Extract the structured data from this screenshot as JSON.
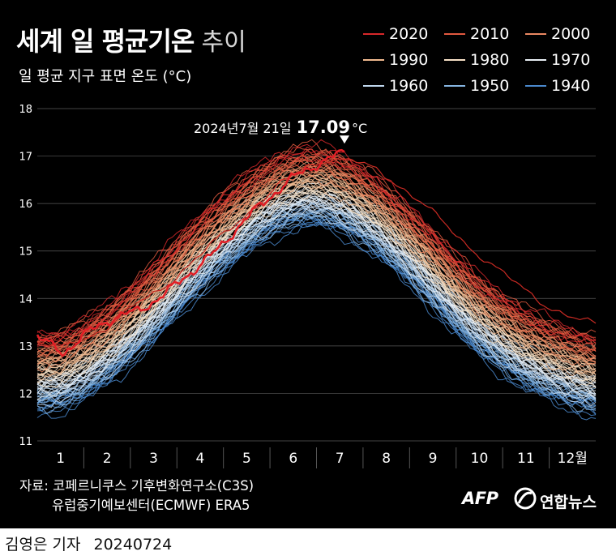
{
  "title": {
    "bold": "세계 일 평균기온",
    "light": "추이"
  },
  "subtitle": "일 평균 지구 표면 온도 (°C)",
  "legend": [
    {
      "label": "2020",
      "color": "#d7282a"
    },
    {
      "label": "2010",
      "color": "#e2593f"
    },
    {
      "label": "2000",
      "color": "#ea8862"
    },
    {
      "label": "1990",
      "color": "#f0b98f"
    },
    {
      "label": "1980",
      "color": "#f7e0c6"
    },
    {
      "label": "1970",
      "color": "#e8eef4"
    },
    {
      "label": "1960",
      "color": "#bfd6ec"
    },
    {
      "label": "1950",
      "color": "#85b4e0"
    },
    {
      "label": "1940",
      "color": "#4a88cc"
    }
  ],
  "chart_data": {
    "type": "line",
    "x_labels": [
      "1",
      "2",
      "3",
      "4",
      "5",
      "6",
      "7",
      "8",
      "9",
      "10",
      "11",
      "12월"
    ],
    "yticks": [
      11,
      12,
      13,
      14,
      15,
      16,
      17,
      18
    ],
    "ylim": [
      11,
      18
    ],
    "grid": "horizontal",
    "legend_position": "top-right",
    "decade_baseline_offsets": {
      "1940": -0.75,
      "1950": -0.6,
      "1960": -0.45,
      "1970": -0.3,
      "1980": -0.1,
      "1990": 0.1,
      "2000": 0.3,
      "2010": 0.55,
      "2020": 0.75
    },
    "series": [
      {
        "values": [
          11.65,
          11.7,
          11.95,
          12.3,
          12.75,
          13.25,
          13.8,
          14.3,
          14.75,
          15.15,
          15.45,
          15.6,
          15.55,
          15.3,
          14.95,
          14.5,
          14.0,
          13.45,
          12.95,
          12.55,
          12.2,
          11.95,
          11.75,
          11.6
        ]
      },
      {
        "values": [
          13.1,
          12.95,
          13.15,
          13.45,
          13.85,
          14.15,
          14.6,
          15.05,
          15.5,
          15.95,
          16.4,
          16.75,
          16.95,
          16.9,
          16.7,
          16.35,
          15.95,
          15.45,
          15.0,
          14.6,
          14.2,
          13.85,
          13.6,
          13.45
        ]
      },
      {
        "values": [
          13.2,
          12.85,
          13.3,
          13.6,
          13.75,
          14.1,
          14.55,
          15.0,
          15.6,
          16.1,
          16.55,
          16.85,
          17.09
        ]
      }
    ],
    "annotation": {
      "text_prefix": "2024년7월 21일",
      "value": "17.09",
      "unit": "°C"
    }
  },
  "source": {
    "line1": "자료: 코페르니쿠스 기후변화연구소(C3S)",
    "line2": "유럽중기예보센터(ECMWF) ERA5"
  },
  "logos": {
    "afp": "AFP",
    "yonhap": "연합뉴스"
  },
  "byline": {
    "name": "김영은 기자",
    "date": "20240724"
  }
}
